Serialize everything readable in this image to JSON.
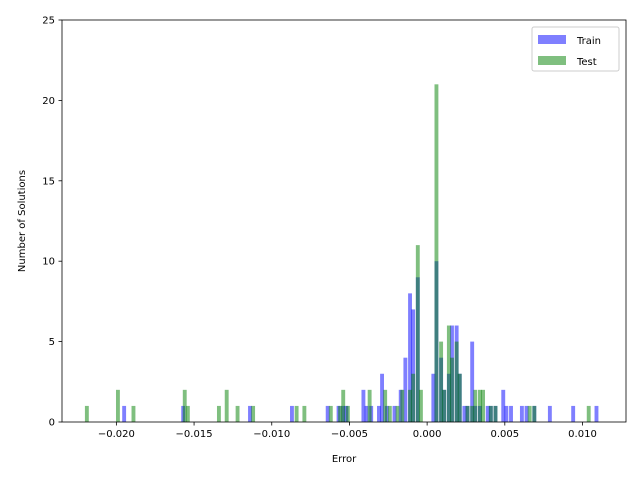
{
  "chart_data": {
    "type": "bar",
    "title": "",
    "xlabel": "Error",
    "ylabel": "Number of Solutions",
    "xlim": [
      -0.0235,
      0.0128
    ],
    "ylim": [
      0,
      25
    ],
    "xticks": [
      -0.02,
      -0.015,
      -0.01,
      -0.005,
      0.0,
      0.005,
      0.01
    ],
    "xtick_labels": [
      "−0.020",
      "−0.015",
      "−0.010",
      "−0.005",
      "0.000",
      "0.005",
      "0.010"
    ],
    "yticks": [
      0,
      5,
      10,
      15,
      20,
      25
    ],
    "ytick_labels": [
      "0",
      "5",
      "10",
      "15",
      "20",
      "25"
    ],
    "bin_width": 0.00025,
    "legend_position": "top-right",
    "grid": false,
    "series": [
      {
        "name": "Train",
        "color": "#0000ff",
        "alpha": 0.5,
        "bins": [
          [
            -0.0195,
            1
          ],
          [
            -0.0157,
            1
          ],
          [
            -0.0114,
            1
          ],
          [
            -0.0087,
            1
          ],
          [
            -0.0064,
            1
          ],
          [
            -0.0057,
            1
          ],
          [
            -0.0054,
            1
          ],
          [
            -0.0052,
            1
          ],
          [
            -0.0041,
            2
          ],
          [
            -0.0039,
            1
          ],
          [
            -0.0036,
            1
          ],
          [
            -0.0031,
            1
          ],
          [
            -0.0029,
            3
          ],
          [
            -0.0026,
            1
          ],
          [
            -0.0021,
            1
          ],
          [
            -0.0017,
            2
          ],
          [
            -0.0014,
            4
          ],
          [
            -0.0011,
            8
          ],
          [
            -0.0009,
            7
          ],
          [
            -0.0006,
            9
          ],
          [
            0.0004,
            3
          ],
          [
            0.0006,
            10
          ],
          [
            0.0009,
            4
          ],
          [
            0.0011,
            2
          ],
          [
            0.0014,
            3
          ],
          [
            0.0016,
            6
          ],
          [
            0.0019,
            6
          ],
          [
            0.0021,
            3
          ],
          [
            0.0024,
            1
          ],
          [
            0.0026,
            1
          ],
          [
            0.0029,
            5
          ],
          [
            0.0031,
            1
          ],
          [
            0.0034,
            1
          ],
          [
            0.0039,
            1
          ],
          [
            0.0041,
            1
          ],
          [
            0.0044,
            1
          ],
          [
            0.0049,
            2
          ],
          [
            0.0051,
            1
          ],
          [
            0.0054,
            1
          ],
          [
            0.0061,
            1
          ],
          [
            0.0064,
            1
          ],
          [
            0.0069,
            1
          ],
          [
            0.0079,
            1
          ],
          [
            0.0094,
            1
          ],
          [
            0.0109,
            1
          ]
        ]
      },
      {
        "name": "Test",
        "color": "#008000",
        "alpha": 0.5,
        "bins": [
          [
            -0.0219,
            1
          ],
          [
            -0.0199,
            2
          ],
          [
            -0.0189,
            1
          ],
          [
            -0.0156,
            2
          ],
          [
            -0.0154,
            1
          ],
          [
            -0.0134,
            1
          ],
          [
            -0.0129,
            2
          ],
          [
            -0.0122,
            1
          ],
          [
            -0.0112,
            1
          ],
          [
            -0.0084,
            1
          ],
          [
            -0.0079,
            1
          ],
          [
            -0.0062,
            1
          ],
          [
            -0.0056,
            1
          ],
          [
            -0.0054,
            2
          ],
          [
            -0.0051,
            1
          ],
          [
            -0.0037,
            2
          ],
          [
            -0.0027,
            2
          ],
          [
            -0.0024,
            1
          ],
          [
            -0.0019,
            1
          ],
          [
            -0.0016,
            2
          ],
          [
            -0.0011,
            2
          ],
          [
            -0.0009,
            3
          ],
          [
            -0.0006,
            11
          ],
          [
            -0.0004,
            2
          ],
          [
            0.0006,
            21
          ],
          [
            0.0009,
            5
          ],
          [
            0.0011,
            2
          ],
          [
            0.0014,
            6
          ],
          [
            0.0016,
            4
          ],
          [
            0.0019,
            5
          ],
          [
            0.0021,
            3
          ],
          [
            0.0026,
            1
          ],
          [
            0.0029,
            1
          ],
          [
            0.0031,
            2
          ],
          [
            0.0034,
            2
          ],
          [
            0.0036,
            2
          ],
          [
            0.0041,
            1
          ],
          [
            0.0044,
            1
          ],
          [
            0.0066,
            1
          ],
          [
            0.0069,
            1
          ],
          [
            0.0104,
            1
          ]
        ]
      }
    ]
  }
}
